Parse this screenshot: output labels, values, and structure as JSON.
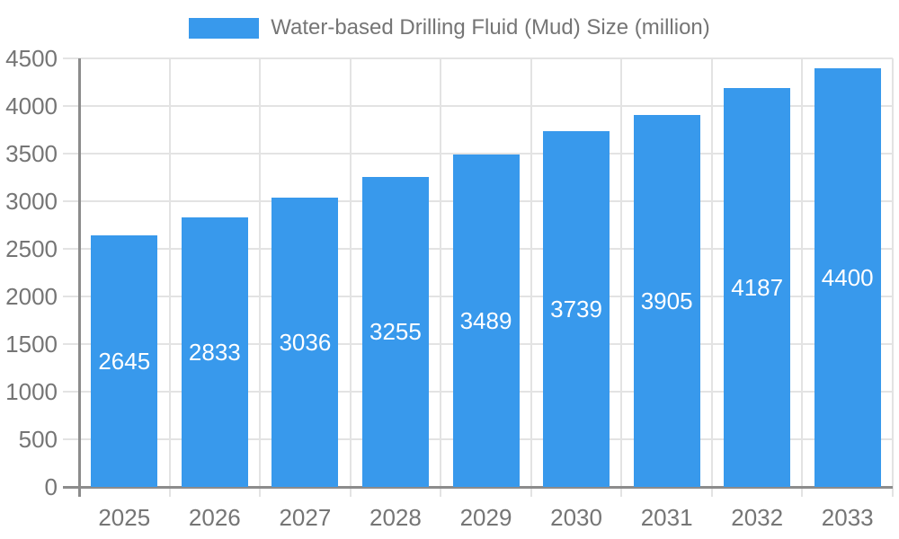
{
  "chart": {
    "colors": {
      "bar": "#3899EC",
      "axis_line": "#8C8C8C",
      "gridline": "#E3E3E3",
      "axis_text": "#757575",
      "bar_label_text": "#FFFFFF",
      "background": "#FFFFFF"
    }
  },
  "chart_data": {
    "type": "bar",
    "title": "Water-based Drilling Fluid (Mud) Size (million)",
    "series_name": "Water-based Drilling Fluid (Mud) Size (million)",
    "categories": [
      "2025",
      "2026",
      "2027",
      "2028",
      "2029",
      "2030",
      "2031",
      "2032",
      "2033"
    ],
    "values": [
      2645,
      2833,
      3036,
      3255,
      3489,
      3739,
      3905,
      4187,
      4400
    ],
    "xlabel": "",
    "ylabel": "",
    "ylim": [
      0,
      4500
    ],
    "ytick_step": 500,
    "ytick_labels": [
      "0",
      "500",
      "1000",
      "1500",
      "2000",
      "2500",
      "3000",
      "3500",
      "4000",
      "4500"
    ],
    "grid": true,
    "legend_position": "top-center",
    "bar_label_position": "inside-center"
  }
}
